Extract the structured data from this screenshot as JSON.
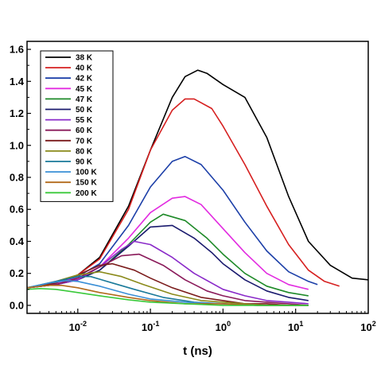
{
  "chart_data": {
    "type": "line",
    "xlabel": "t (ns)",
    "ylabel": "",
    "xscale": "log",
    "xlim": [
      0.002,
      100
    ],
    "ylim": [
      -0.05,
      1.65
    ],
    "yticks": [
      0.0,
      0.2,
      0.4,
      0.6,
      0.8,
      1.0,
      1.2,
      1.4,
      1.6
    ],
    "ytick_labels": [
      "0.0",
      "0.2",
      "0.4",
      "0.6",
      "0.8",
      "1.0",
      "1.2",
      "1.4",
      "1.6"
    ],
    "xticks": [
      0.01,
      0.1,
      1,
      10,
      100
    ],
    "xtick_labels": [
      {
        "base": "10",
        "exp": "-2"
      },
      {
        "base": "10",
        "exp": "-1"
      },
      {
        "base": "10",
        "exp": "0"
      },
      {
        "base": "10",
        "exp": "1"
      },
      {
        "base": "10",
        "exp": "2"
      }
    ],
    "grid": false,
    "legend_position": "top-left",
    "series": [
      {
        "name": "38 K",
        "color": "#000000",
        "x": [
          0.002,
          0.005,
          0.01,
          0.02,
          0.05,
          0.1,
          0.2,
          0.3,
          0.45,
          0.6,
          1,
          2,
          4,
          8,
          15,
          30,
          60,
          100
        ],
        "y": [
          0.11,
          0.14,
          0.19,
          0.3,
          0.62,
          0.97,
          1.3,
          1.43,
          1.47,
          1.45,
          1.38,
          1.3,
          1.05,
          0.68,
          0.4,
          0.25,
          0.17,
          0.16
        ]
      },
      {
        "name": "40 K",
        "color": "#d62020",
        "x": [
          0.002,
          0.005,
          0.01,
          0.02,
          0.05,
          0.1,
          0.2,
          0.3,
          0.4,
          0.7,
          1,
          2,
          4,
          8,
          15,
          25,
          40
        ],
        "y": [
          0.11,
          0.14,
          0.19,
          0.29,
          0.6,
          0.97,
          1.22,
          1.29,
          1.29,
          1.23,
          1.12,
          0.88,
          0.62,
          0.38,
          0.22,
          0.15,
          0.12
        ]
      },
      {
        "name": "42 K",
        "color": "#1c3fa8",
        "x": [
          0.002,
          0.005,
          0.01,
          0.02,
          0.05,
          0.1,
          0.2,
          0.3,
          0.5,
          1,
          2,
          4,
          8,
          15,
          20
        ],
        "y": [
          0.11,
          0.14,
          0.18,
          0.26,
          0.5,
          0.74,
          0.9,
          0.93,
          0.88,
          0.72,
          0.52,
          0.34,
          0.21,
          0.15,
          0.13
        ]
      },
      {
        "name": "45 K",
        "color": "#e22be0",
        "x": [
          0.002,
          0.005,
          0.01,
          0.02,
          0.05,
          0.1,
          0.2,
          0.3,
          0.5,
          1,
          2,
          4,
          8,
          15
        ],
        "y": [
          0.11,
          0.14,
          0.17,
          0.24,
          0.42,
          0.58,
          0.67,
          0.68,
          0.63,
          0.48,
          0.33,
          0.2,
          0.13,
          0.1
        ]
      },
      {
        "name": "47 K",
        "color": "#1e8a28",
        "x": [
          0.002,
          0.005,
          0.01,
          0.02,
          0.05,
          0.1,
          0.15,
          0.3,
          0.6,
          1,
          2,
          4,
          8,
          15
        ],
        "y": [
          0.11,
          0.13,
          0.16,
          0.22,
          0.38,
          0.52,
          0.57,
          0.53,
          0.42,
          0.32,
          0.2,
          0.12,
          0.08,
          0.06
        ]
      },
      {
        "name": "50 K",
        "color": "#1a1a6e",
        "x": [
          0.002,
          0.005,
          0.01,
          0.02,
          0.05,
          0.1,
          0.2,
          0.4,
          0.7,
          1,
          2,
          4,
          8,
          15
        ],
        "y": [
          0.11,
          0.13,
          0.16,
          0.22,
          0.37,
          0.49,
          0.5,
          0.42,
          0.33,
          0.26,
          0.16,
          0.09,
          0.05,
          0.03
        ]
      },
      {
        "name": "55 K",
        "color": "#8a2ac9",
        "x": [
          0.002,
          0.005,
          0.01,
          0.02,
          0.04,
          0.06,
          0.1,
          0.2,
          0.4,
          1,
          2,
          4,
          8,
          15
        ],
        "y": [
          0.11,
          0.13,
          0.16,
          0.24,
          0.35,
          0.4,
          0.38,
          0.3,
          0.2,
          0.1,
          0.06,
          0.03,
          0.02,
          0.01
        ]
      },
      {
        "name": "60 K",
        "color": "#8a1a5a",
        "x": [
          0.002,
          0.005,
          0.01,
          0.02,
          0.04,
          0.07,
          0.15,
          0.3,
          0.6,
          1,
          2,
          4,
          8,
          15
        ],
        "y": [
          0.11,
          0.13,
          0.17,
          0.24,
          0.31,
          0.32,
          0.25,
          0.16,
          0.09,
          0.06,
          0.03,
          0.02,
          0.01,
          0.0
        ]
      },
      {
        "name": "70 K",
        "color": "#7a1a1a",
        "x": [
          0.002,
          0.005,
          0.01,
          0.02,
          0.03,
          0.06,
          0.1,
          0.2,
          0.5,
          1,
          2,
          4,
          8,
          15
        ],
        "y": [
          0.11,
          0.14,
          0.19,
          0.25,
          0.26,
          0.22,
          0.17,
          0.11,
          0.05,
          0.03,
          0.01,
          0.01,
          0.0,
          0.0
        ]
      },
      {
        "name": "80 K",
        "color": "#8a8a1a",
        "x": [
          0.002,
          0.005,
          0.01,
          0.02,
          0.04,
          0.08,
          0.2,
          0.5,
          1,
          2,
          4,
          8,
          15
        ],
        "y": [
          0.11,
          0.15,
          0.19,
          0.21,
          0.18,
          0.13,
          0.07,
          0.03,
          0.02,
          0.01,
          0.0,
          0.0,
          0.0
        ]
      },
      {
        "name": "90 K",
        "color": "#1a7a9a",
        "x": [
          0.002,
          0.005,
          0.01,
          0.015,
          0.03,
          0.06,
          0.15,
          0.4,
          1,
          3,
          8,
          15
        ],
        "y": [
          0.11,
          0.15,
          0.18,
          0.18,
          0.14,
          0.1,
          0.05,
          0.02,
          0.01,
          0.0,
          0.0,
          0.0
        ]
      },
      {
        "name": "100 K",
        "color": "#3a8fd6",
        "x": [
          0.002,
          0.004,
          0.007,
          0.01,
          0.02,
          0.05,
          0.1,
          0.3,
          1,
          3,
          8,
          15
        ],
        "y": [
          0.11,
          0.14,
          0.155,
          0.15,
          0.12,
          0.07,
          0.04,
          0.02,
          0.01,
          0.0,
          0.0,
          0.0
        ]
      },
      {
        "name": "150 K",
        "color": "#b26a1a",
        "x": [
          0.002,
          0.004,
          0.006,
          0.01,
          0.02,
          0.05,
          0.1,
          0.3,
          1,
          3,
          8,
          15
        ],
        "y": [
          0.11,
          0.125,
          0.125,
          0.11,
          0.08,
          0.05,
          0.03,
          0.01,
          0.01,
          0.0,
          0.0,
          0.0
        ]
      },
      {
        "name": "200 K",
        "color": "#3ac93a",
        "x": [
          0.002,
          0.003,
          0.005,
          0.01,
          0.02,
          0.05,
          0.1,
          0.3,
          1,
          3,
          8,
          15
        ],
        "y": [
          0.1,
          0.105,
          0.1,
          0.08,
          0.06,
          0.035,
          0.02,
          0.01,
          0.0,
          0.0,
          0.0,
          0.0
        ]
      }
    ]
  }
}
